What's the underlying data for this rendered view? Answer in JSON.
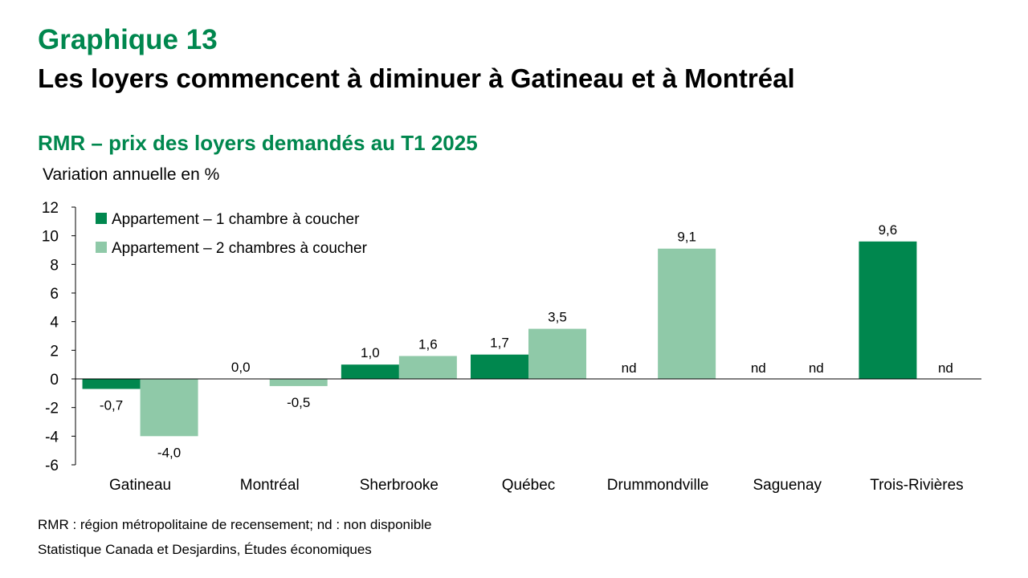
{
  "header": {
    "chart_number": "Graphique 13",
    "title": "Les loyers commencent à diminuer à Gatineau et à Montréal"
  },
  "footer": {
    "note": "RMR : région métropolitaine de recensement; nd : non disponible",
    "source": "Statistique Canada et Desjardins, Études économiques"
  },
  "colors": {
    "series1": "#00874E",
    "series2": "#8FC9A8",
    "brand": "#00874E"
  },
  "chart_data": {
    "type": "bar",
    "title": "RMR – prix des loyers demandés au T1 2025",
    "ylabel": "Variation annuelle en %",
    "xlabel": "",
    "ylim": [
      -6,
      12
    ],
    "yticks": [
      -6,
      -4,
      -2,
      0,
      2,
      4,
      6,
      8,
      10,
      12
    ],
    "ytick_labels": [
      "-6",
      "-4",
      "-2",
      "0",
      "2",
      "4",
      "6",
      "8",
      "10",
      "12"
    ],
    "legend_position": "top-left",
    "grid": false,
    "categories": [
      "Gatineau",
      "Montréal",
      "Sherbrooke",
      "Québec",
      "Drummondville",
      "Saguenay",
      "Trois-Rivières"
    ],
    "series": [
      {
        "name": "Appartement – 1 chambre à coucher",
        "values": [
          -0.7,
          0.0,
          1.0,
          1.7,
          null,
          null,
          9.6
        ],
        "labels": [
          "-0,7",
          "0,0",
          "1,0",
          "1,7",
          "nd",
          "nd",
          "9,6"
        ]
      },
      {
        "name": "Appartement – 2 chambres à coucher",
        "values": [
          -4.0,
          -0.5,
          1.6,
          3.5,
          9.1,
          null,
          null
        ],
        "labels": [
          "-4,0",
          "-0,5",
          "1,6",
          "3,5",
          "9,1",
          "nd",
          "nd"
        ]
      }
    ]
  }
}
